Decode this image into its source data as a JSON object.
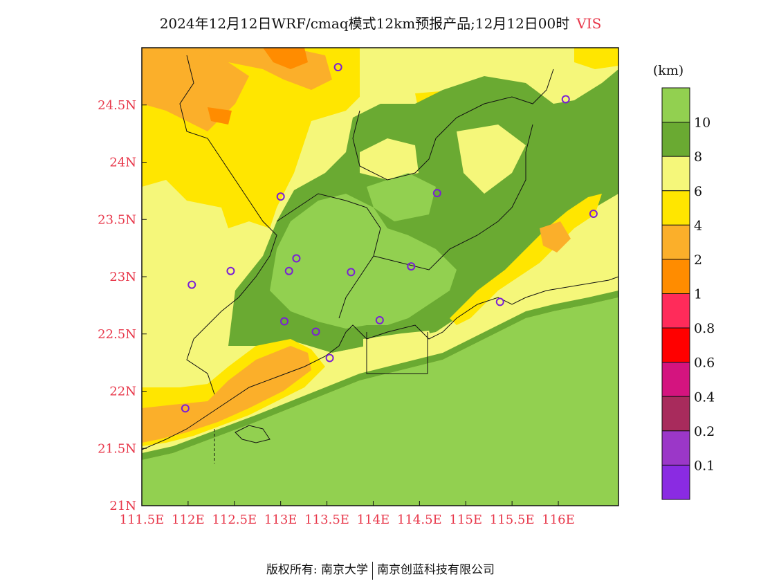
{
  "title": {
    "main": "2024年12月12日WRF/cmaq模式12km预报产品;12月12日00时",
    "variable": "VIS"
  },
  "map": {
    "lat_range": [
      21.0,
      25.0
    ],
    "lon_range": [
      111.5,
      116.65
    ],
    "lat_ticks": [
      "21N",
      "21.5N",
      "22N",
      "22.5N",
      "23N",
      "23.5N",
      "24N",
      "24.5N"
    ],
    "lon_ticks": [
      "111.5E",
      "112E",
      "112.5E",
      "113E",
      "113.5E",
      "114E",
      "114.5E",
      "115E",
      "115.5E",
      "116E"
    ],
    "stations": [
      {
        "lon": 113.62,
        "lat": 24.83
      },
      {
        "lon": 116.08,
        "lat": 24.55
      },
      {
        "lon": 113.0,
        "lat": 23.7
      },
      {
        "lon": 114.69,
        "lat": 23.73
      },
      {
        "lon": 116.38,
        "lat": 23.55
      },
      {
        "lon": 113.17,
        "lat": 23.16
      },
      {
        "lon": 112.46,
        "lat": 23.05
      },
      {
        "lon": 113.09,
        "lat": 23.05
      },
      {
        "lon": 113.76,
        "lat": 23.04
      },
      {
        "lon": 114.41,
        "lat": 23.09
      },
      {
        "lon": 112.04,
        "lat": 22.93
      },
      {
        "lon": 115.37,
        "lat": 22.78
      },
      {
        "lon": 113.04,
        "lat": 22.61
      },
      {
        "lon": 114.07,
        "lat": 22.62
      },
      {
        "lon": 113.38,
        "lat": 22.52
      },
      {
        "lon": 113.53,
        "lat": 22.29
      },
      {
        "lon": 111.97,
        "lat": 21.85
      }
    ]
  },
  "colorbar": {
    "unit": "(km)",
    "levels": [
      "10",
      "8",
      "6",
      "4",
      "2",
      "1",
      "0.8",
      "0.6",
      "0.4",
      "0.2",
      "0.1"
    ],
    "colors": [
      "#92d050",
      "#6aaa32",
      "#f5f77a",
      "#ffe600",
      "#fbaf2a",
      "#ff8c00",
      "#ff2b5a",
      "#ff0000",
      "#d4147f",
      "#a82b5c",
      "#9b37c8",
      "#8a2be2"
    ]
  },
  "footer": {
    "left": "版权所有: 南京大学",
    "right": "南京创蓝科技有限公司"
  }
}
